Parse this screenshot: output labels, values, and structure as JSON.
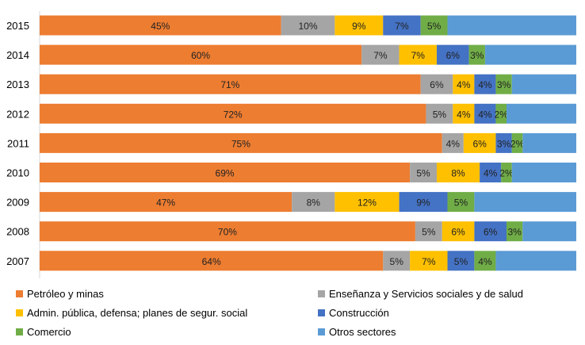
{
  "chart_data": {
    "type": "bar",
    "orientation": "horizontal",
    "stacked": "percent",
    "categories": [
      "2015",
      "2014",
      "2013",
      "2012",
      "2011",
      "2010",
      "2009",
      "2008",
      "2007"
    ],
    "series": [
      {
        "name": "Petróleo y minas",
        "color": "#ED7D31",
        "values": [
          45,
          60,
          71,
          72,
          75,
          69,
          47,
          70,
          64
        ]
      },
      {
        "name": "Enseñanza  y Servicios sociales y de salud",
        "color": "#A5A5A5",
        "values": [
          10,
          7,
          6,
          5,
          4,
          5,
          8,
          5,
          5
        ]
      },
      {
        "name": "Admin. pública, defensa; planes de segur. social",
        "color": "#FFC000",
        "values": [
          9,
          7,
          4,
          4,
          6,
          8,
          12,
          6,
          7
        ]
      },
      {
        "name": "Construcción",
        "color": "#4472C4",
        "values": [
          7,
          6,
          4,
          4,
          3,
          4,
          9,
          6,
          5
        ]
      },
      {
        "name": "Comercio",
        "color": "#70AD47",
        "values": [
          5,
          3,
          3,
          2,
          2,
          2,
          5,
          3,
          4
        ]
      },
      {
        "name": "Otros sectores",
        "color": "#5B9BD5",
        "values": [
          24,
          17,
          12,
          13,
          10,
          12,
          19,
          10,
          15
        ]
      }
    ],
    "data_labels": [
      [
        "45%",
        "10%",
        "9%",
        "7%",
        "5%",
        ""
      ],
      [
        "60%",
        "7%",
        "7%",
        "6%",
        "3%",
        ""
      ],
      [
        "71%",
        "6%",
        "4%",
        "4%",
        "3%",
        ""
      ],
      [
        "72%",
        "5%",
        "4%",
        "4%",
        "2%",
        ""
      ],
      [
        "75%",
        "4%",
        "6%",
        "3%",
        "2%",
        ""
      ],
      [
        "69%",
        "5%",
        "8%",
        "4%",
        "2%",
        ""
      ],
      [
        "47%",
        "8%",
        "12%",
        "9%",
        "5%",
        ""
      ],
      [
        "70%",
        "5%",
        "6%",
        "6%",
        "3%",
        ""
      ],
      [
        "64%",
        "5%",
        "7%",
        "5%",
        "4%",
        ""
      ]
    ],
    "xlim": [
      0,
      100
    ],
    "grid": false,
    "legend_position": "bottom"
  }
}
